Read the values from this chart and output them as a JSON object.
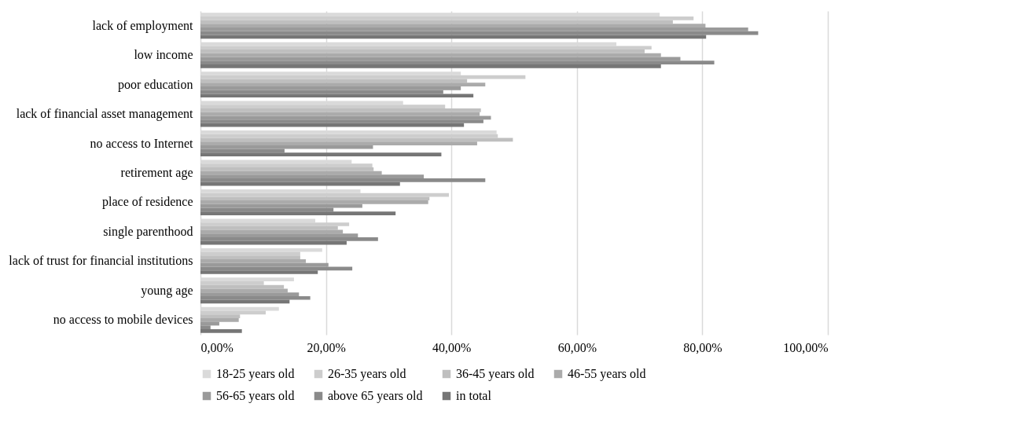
{
  "chart_data": {
    "type": "bar",
    "orientation": "horizontal",
    "categories": [
      "lack of employment",
      "low income",
      "poor education",
      "lack of financial asset management",
      "no access to Internet",
      "retirement age",
      "place of residence",
      "single parenthood",
      "lack of trust for financial institutions",
      "young age",
      "no access to mobile devices"
    ],
    "series": [
      {
        "name": "18-25 years old",
        "color": "#dadada",
        "values": [
          73.2,
          66.3,
          41.5,
          32.3,
          47.2,
          24.1,
          25.5,
          18.3,
          19.4,
          14.9,
          12.5
        ]
      },
      {
        "name": "26-35 years old",
        "color": "#cdcdcd",
        "values": [
          78.6,
          71.9,
          51.8,
          39.0,
          47.4,
          27.4,
          39.6,
          23.7,
          15.9,
          10.1,
          10.4
        ]
      },
      {
        "name": "36-45 years old",
        "color": "#bfbfbf",
        "values": [
          75.3,
          70.8,
          42.5,
          44.7,
          49.8,
          27.6,
          36.5,
          21.9,
          15.9,
          13.3,
          6.3
        ]
      },
      {
        "name": "46-55 years old",
        "color": "#ababab",
        "values": [
          80.5,
          73.4,
          45.4,
          44.5,
          44.1,
          28.9,
          36.3,
          22.7,
          16.8,
          13.9,
          6.1
        ]
      },
      {
        "name": "56-65 years old",
        "color": "#9a9a9a",
        "values": [
          87.3,
          76.5,
          41.5,
          46.3,
          27.5,
          35.6,
          25.8,
          25.1,
          20.4,
          15.7,
          3.0
        ]
      },
      {
        "name": "above 65 years old",
        "color": "#8a8a8a",
        "values": [
          88.9,
          81.9,
          38.7,
          45.1,
          13.4,
          45.4,
          21.2,
          28.3,
          24.2,
          17.5,
          1.6
        ]
      },
      {
        "name": "in total",
        "color": "#767676",
        "values": [
          80.6,
          73.4,
          43.5,
          42.0,
          38.4,
          31.8,
          31.1,
          23.3,
          18.7,
          14.2,
          6.6
        ]
      }
    ],
    "xlim": [
      0,
      100
    ],
    "xticks": [
      {
        "value": 0,
        "label": "0,00%"
      },
      {
        "value": 20,
        "label": "20,00%"
      },
      {
        "value": 40,
        "label": "40,00%"
      },
      {
        "value": 60,
        "label": "60,00%"
      },
      {
        "value": 80,
        "label": "80,00%"
      },
      {
        "value": 100,
        "label": "100,00%"
      }
    ],
    "grid": "x",
    "legend": "bottom"
  }
}
